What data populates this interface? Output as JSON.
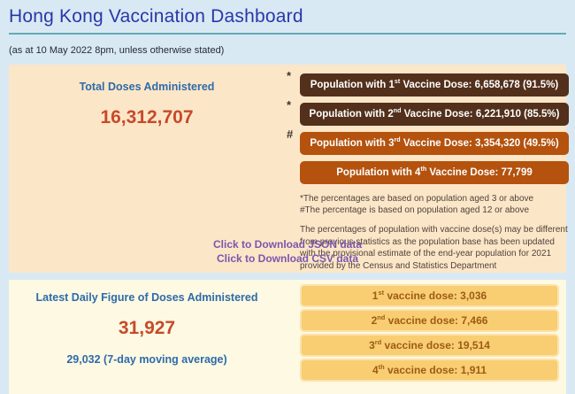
{
  "header": {
    "title": "Hong Kong Vaccination Dashboard",
    "subtitle": "(as at 10 May 2022 8pm, unless otherwise stated)"
  },
  "totals": {
    "label": "Total Doses Administered",
    "value": "16,312,707",
    "dose_bars": [
      {
        "marker": "*",
        "prefix": "Population with 1",
        "ordinal": "st",
        "suffix": " Vaccine Dose: 6,658,678 (91.5%)"
      },
      {
        "marker": "*",
        "prefix": "Population with 2",
        "ordinal": "nd",
        "suffix": " Vaccine Dose: 6,221,910 (85.5%)"
      },
      {
        "marker": "#",
        "prefix": "Population with 3",
        "ordinal": "rd",
        "suffix": " Vaccine Dose: 3,354,320 (49.5%)"
      },
      {
        "marker": "",
        "prefix": "Population with 4",
        "ordinal": "th",
        "suffix": " Vaccine Dose: 77,799"
      }
    ],
    "footnotes": [
      "*The percentages are based on population aged 3 or above",
      "#The percentage is based on population aged 12 or above"
    ],
    "note": "The percentages of population with vaccine dose(s) may be different from previous statistics as the population base has been updated with the provisional estimate of the end-year population for 2021 provided by the Census and Statistics Department",
    "links": {
      "json": "Click to Download JSON data",
      "csv": "Click to Download CSV data"
    }
  },
  "daily": {
    "label": "Latest Daily Figure of Doses Administered",
    "value": "31,927",
    "moving_average": "29,032 (7-day moving average)",
    "dose_bars": [
      {
        "prefix": "1",
        "ordinal": "st",
        "suffix": " vaccine dose: 3,036"
      },
      {
        "prefix": "2",
        "ordinal": "nd",
        "suffix": " vaccine dose: 7,466"
      },
      {
        "prefix": "3",
        "ordinal": "rd",
        "suffix": " vaccine dose: 19,514"
      },
      {
        "prefix": "4",
        "ordinal": "th",
        "suffix": " vaccine dose: 1,911"
      }
    ]
  },
  "colors": {
    "page_background": "#d9e9f4",
    "total_panel_background": "#fce6c8",
    "daily_panel_background": "#fdf9e3",
    "title_blue": "#2838a8",
    "divider_teal": "#63abb1",
    "label_blue": "#2e6ba8",
    "value_red": "#c64a2a",
    "bar_dark_brown": "#53301b",
    "bar_rust": "#b4520e",
    "daily_bar_gold": "#f9cd72",
    "daily_bar_text_brown": "#9c5c15",
    "link_purple": "#7b57ab"
  }
}
